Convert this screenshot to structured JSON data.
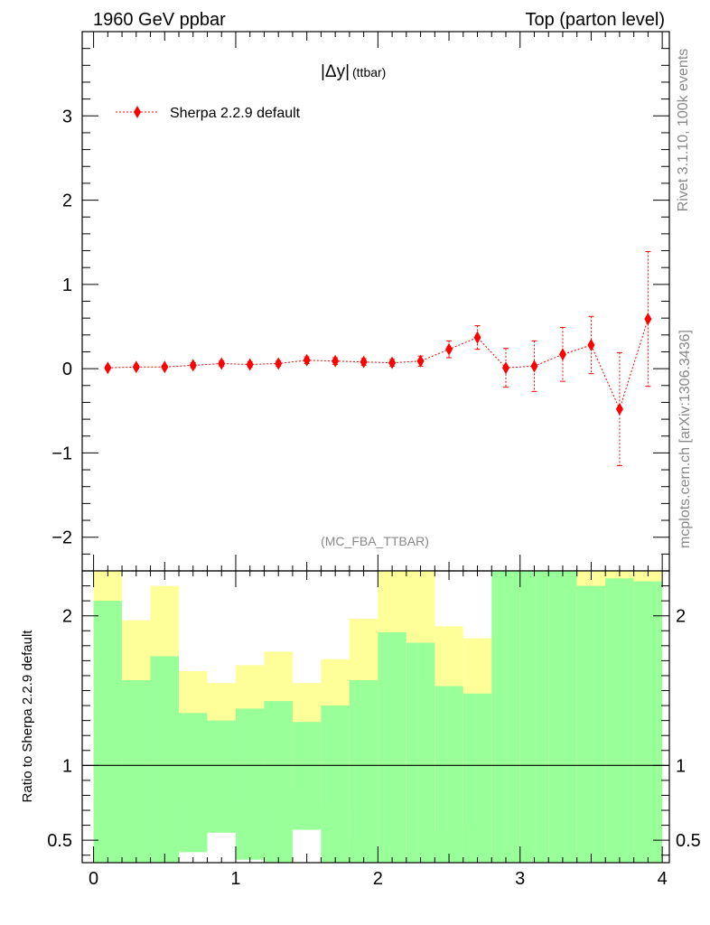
{
  "header": {
    "left": "1960 GeV ppbar",
    "right": "Top (parton level)"
  },
  "side_labels": {
    "rivet": "Rivet 3.1.10,  100k events",
    "mcplots": "mcplots.cern.ch [arXiv:1306.3436]"
  },
  "analysis_tag": "(MC_FBA_TTBAR)",
  "colors": {
    "series": "#ff0000",
    "band_inner": "#99ff99",
    "band_outer": "#ffff99"
  },
  "chart_data": [
    {
      "type": "scatter",
      "title_main": "|Δy|",
      "title_sub": "(ttbar)",
      "xlim": [
        -0.08,
        4.05
      ],
      "ylim": [
        -2.4,
        4.0
      ],
      "yticks": [
        -2,
        -1,
        0,
        1,
        2,
        3
      ],
      "ytick_labels": [
        "−2",
        "−1",
        "0",
        "1",
        "2",
        "3"
      ],
      "legend_position": "top-left",
      "series": [
        {
          "name": "Sherpa 2.2.9 default",
          "x": [
            0.1,
            0.3,
            0.5,
            0.7,
            0.9,
            1.1,
            1.3,
            1.5,
            1.7,
            1.9,
            2.1,
            2.3,
            2.5,
            2.7,
            2.9,
            3.1,
            3.3,
            3.5,
            3.7,
            3.9
          ],
          "y": [
            0.01,
            0.02,
            0.02,
            0.04,
            0.06,
            0.05,
            0.06,
            0.1,
            0.09,
            0.08,
            0.07,
            0.09,
            0.23,
            0.37,
            0.01,
            0.03,
            0.17,
            0.28,
            -0.48,
            0.59
          ],
          "yerr": [
            0.02,
            0.02,
            0.02,
            0.03,
            0.03,
            0.03,
            0.03,
            0.04,
            0.04,
            0.04,
            0.04,
            0.06,
            0.1,
            0.14,
            0.23,
            0.3,
            0.32,
            0.34,
            0.67,
            0.8
          ]
        }
      ]
    },
    {
      "type": "area",
      "ylabel": "Ratio to Sherpa 2.2.9 default",
      "xlim": [
        -0.08,
        4.05
      ],
      "ylim": [
        0.35,
        2.3
      ],
      "xticks": [
        0,
        1,
        2,
        3,
        4
      ],
      "xtick_labels": [
        "0",
        "1",
        "2",
        "3",
        "4"
      ],
      "yticks": [
        0.5,
        1,
        2
      ],
      "ytick_labels": [
        "0.5",
        "1",
        "2"
      ],
      "reference_line": 1,
      "bins": [
        0.0,
        0.2,
        0.4,
        0.6,
        0.8,
        1.0,
        1.2,
        1.4,
        1.6,
        1.8,
        2.0,
        2.2,
        2.4,
        2.6,
        2.8,
        3.0,
        3.2,
        3.4,
        3.6,
        3.8,
        4.0
      ],
      "inner_band": {
        "upper": [
          2.1,
          1.57,
          1.73,
          1.35,
          1.3,
          1.38,
          1.43,
          1.29,
          1.4,
          1.57,
          1.89,
          1.82,
          1.53,
          1.48,
          2.5,
          2.5,
          2.5,
          2.2,
          2.25,
          2.23
        ],
        "lower": [
          0.35,
          0.35,
          0.35,
          0.35,
          0.35,
          0.35,
          0.35,
          0.35,
          0.35,
          0.35,
          0.35,
          0.35,
          0.35,
          0.35,
          0.35,
          0.35,
          0.35,
          0.35,
          0.35,
          0.35
        ]
      },
      "outer_band": {
        "upper": [
          2.5,
          1.97,
          2.2,
          1.63,
          1.55,
          1.67,
          1.76,
          1.55,
          1.71,
          1.98,
          2.5,
          2.5,
          1.93,
          1.85,
          2.5,
          2.5,
          2.5,
          2.5,
          2.5,
          2.5
        ],
        "lower": [
          0.35,
          0.52,
          0.35,
          0.77,
          0.81,
          0.76,
          0.71,
          0.82,
          0.71,
          0.52,
          0.35,
          0.35,
          0.57,
          0.64,
          0.35,
          0.35,
          0.35,
          0.35,
          0.35,
          0.35
        ]
      },
      "white_gaps": {
        "upper": [
          0.35,
          0.35,
          0.35,
          0.42,
          0.55,
          0.37,
          0.35,
          0.57,
          0.35,
          0.35,
          0.35,
          0.35,
          0.35,
          0.35,
          0.35,
          0.35,
          0.35,
          0.35,
          0.35,
          0.35
        ],
        "lower": [
          0.35,
          0.35,
          0.35,
          0.35,
          0.35,
          0.35,
          0.35,
          0.35,
          0.35,
          0.35,
          0.35,
          0.35,
          0.35,
          0.35,
          0.35,
          0.35,
          0.35,
          0.35,
          0.35,
          0.35
        ]
      }
    }
  ]
}
